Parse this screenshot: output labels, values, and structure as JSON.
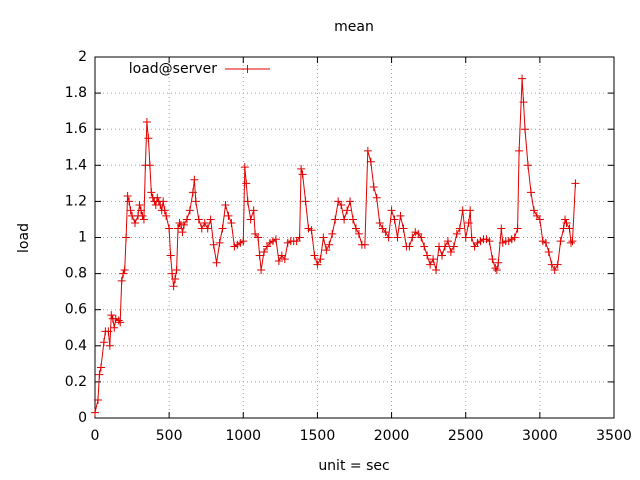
{
  "chart_data": {
    "type": "line",
    "title": "mean",
    "xlabel": "unit = sec",
    "ylabel": "load",
    "x": [
      0,
      20,
      30,
      40,
      60,
      70,
      90,
      100,
      110,
      120,
      130,
      140,
      160,
      170,
      180,
      190,
      200,
      210,
      220,
      230,
      240,
      250,
      270,
      290,
      300,
      310,
      320,
      330,
      340,
      350,
      360,
      370,
      380,
      390,
      400,
      410,
      420,
      430,
      440,
      450,
      460,
      470,
      480,
      500,
      510,
      520,
      530,
      540,
      550,
      560,
      570,
      580,
      590,
      600,
      620,
      640,
      660,
      670,
      680,
      700,
      720,
      740,
      760,
      780,
      800,
      820,
      840,
      860,
      880,
      900,
      920,
      940,
      960,
      980,
      1000,
      1010,
      1020,
      1030,
      1050,
      1070,
      1080,
      1100,
      1110,
      1120,
      1140,
      1160,
      1180,
      1200,
      1220,
      1240,
      1260,
      1280,
      1300,
      1320,
      1340,
      1360,
      1380,
      1390,
      1400,
      1420,
      1440,
      1460,
      1480,
      1500,
      1520,
      1540,
      1560,
      1580,
      1600,
      1620,
      1640,
      1660,
      1680,
      1700,
      1720,
      1740,
      1760,
      1780,
      1800,
      1820,
      1840,
      1860,
      1880,
      1900,
      1920,
      1940,
      1960,
      1980,
      2000,
      2020,
      2040,
      2060,
      2080,
      2100,
      2120,
      2140,
      2160,
      2180,
      2200,
      2220,
      2240,
      2260,
      2280,
      2300,
      2320,
      2340,
      2360,
      2380,
      2400,
      2420,
      2440,
      2460,
      2480,
      2500,
      2520,
      2530,
      2540,
      2560,
      2580,
      2600,
      2620,
      2640,
      2660,
      2680,
      2700,
      2710,
      2720,
      2740,
      2750,
      2770,
      2790,
      2810,
      2830,
      2850,
      2860,
      2880,
      2890,
      2900,
      2920,
      2940,
      2960,
      2980,
      3000,
      3020,
      3040,
      3060,
      3080,
      3100,
      3120,
      3140,
      3160,
      3170,
      3180,
      3200,
      3210,
      3220,
      3240
    ],
    "series": [
      {
        "name": "load@server",
        "color": "#e00000",
        "values": [
          0.03,
          0.1,
          0.24,
          0.28,
          0.42,
          0.48,
          0.48,
          0.4,
          0.57,
          0.55,
          0.5,
          0.55,
          0.54,
          0.53,
          0.76,
          0.8,
          0.82,
          1.0,
          1.23,
          1.2,
          1.15,
          1.12,
          1.08,
          1.12,
          1.18,
          1.15,
          1.12,
          1.1,
          1.4,
          1.64,
          1.55,
          1.4,
          1.25,
          1.22,
          1.2,
          1.18,
          1.22,
          1.2,
          1.18,
          1.15,
          1.2,
          1.15,
          1.12,
          1.05,
          0.9,
          0.8,
          0.73,
          0.77,
          0.82,
          1.05,
          1.08,
          1.07,
          1.03,
          1.07,
          1.1,
          1.15,
          1.25,
          1.32,
          1.2,
          1.1,
          1.05,
          1.08,
          1.05,
          1.1,
          0.96,
          0.86,
          0.97,
          1.05,
          1.18,
          1.12,
          1.08,
          0.95,
          0.96,
          0.97,
          0.98,
          1.39,
          1.3,
          1.2,
          1.1,
          1.15,
          1.02,
          1.0,
          0.9,
          0.82,
          0.92,
          0.95,
          0.97,
          0.98,
          0.99,
          0.87,
          0.9,
          0.88,
          0.97,
          0.98,
          0.98,
          0.98,
          1.0,
          1.38,
          1.35,
          1.2,
          1.05,
          1.04,
          0.9,
          0.85,
          0.88,
          1.0,
          0.93,
          0.96,
          1.02,
          1.1,
          1.2,
          1.18,
          1.1,
          1.15,
          1.2,
          1.1,
          1.05,
          1.02,
          0.96,
          0.96,
          1.48,
          1.42,
          1.28,
          1.22,
          1.08,
          1.05,
          1.03,
          1.0,
          1.15,
          1.1,
          1.0,
          1.12,
          1.05,
          0.95,
          0.95,
          1.0,
          1.03,
          1.02,
          1.0,
          0.95,
          0.9,
          0.85,
          0.88,
          0.82,
          0.95,
          0.9,
          0.95,
          0.98,
          0.92,
          0.95,
          1.02,
          1.05,
          1.15,
          1.0,
          1.08,
          1.15,
          1.0,
          0.95,
          0.97,
          0.98,
          0.99,
          0.99,
          0.98,
          0.88,
          0.83,
          0.82,
          0.86,
          1.05,
          0.97,
          0.98,
          0.98,
          0.99,
          1.0,
          1.05,
          1.48,
          1.88,
          1.75,
          1.6,
          1.4,
          1.25,
          1.15,
          1.12,
          1.1,
          0.98,
          0.97,
          0.92,
          0.85,
          0.82,
          0.85,
          0.98,
          1.05,
          1.1,
          1.08,
          1.05,
          0.97,
          0.98,
          1.3
        ]
      }
    ],
    "xlim": [
      0,
      3500
    ],
    "xticks": [
      0,
      500,
      1000,
      1500,
      2000,
      2500,
      3000,
      3500
    ],
    "ylim": [
      0,
      2
    ],
    "yticks": [
      0,
      0.2,
      0.4,
      0.6,
      0.8,
      1,
      1.2,
      1.4,
      1.6,
      1.8,
      2
    ],
    "grid": true,
    "legend": "top-left"
  }
}
